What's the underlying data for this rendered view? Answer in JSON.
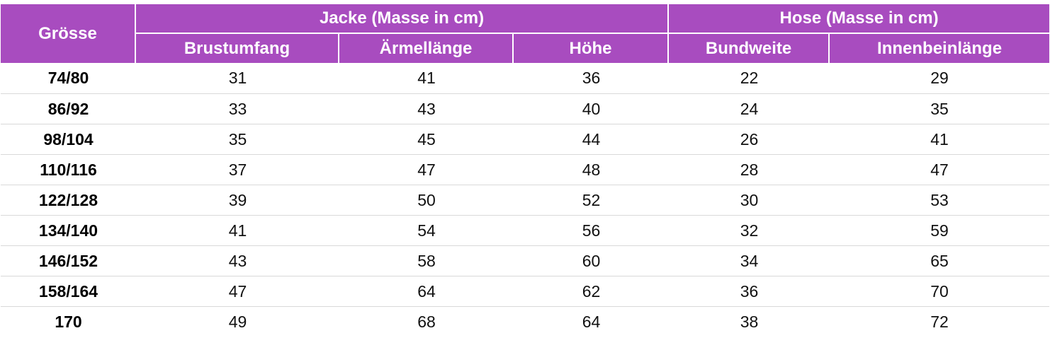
{
  "header": {
    "size_label": "Grösse",
    "jacket_group": "Jacke (Masse in cm)",
    "pants_group": "Hose (Masse in cm)",
    "columns": [
      "Brustumfang",
      "Ärmellänge",
      "Höhe",
      "Bundweite",
      "Innenbeinlänge"
    ]
  },
  "rows": [
    {
      "size": "74/80",
      "vals": [
        "31",
        "41",
        "36",
        "22",
        "29"
      ]
    },
    {
      "size": "86/92",
      "vals": [
        "33",
        "43",
        "40",
        "24",
        "35"
      ]
    },
    {
      "size": "98/104",
      "vals": [
        "35",
        "45",
        "44",
        "26",
        "41"
      ]
    },
    {
      "size": "110/116",
      "vals": [
        "37",
        "47",
        "48",
        "28",
        "47"
      ]
    },
    {
      "size": "122/128",
      "vals": [
        "39",
        "50",
        "52",
        "30",
        "53"
      ]
    },
    {
      "size": "134/140",
      "vals": [
        "41",
        "54",
        "56",
        "32",
        "59"
      ]
    },
    {
      "size": "146/152",
      "vals": [
        "43",
        "58",
        "60",
        "34",
        "65"
      ]
    },
    {
      "size": "158/164",
      "vals": [
        "47",
        "64",
        "62",
        "36",
        "70"
      ]
    },
    {
      "size": "170",
      "vals": [
        "49",
        "68",
        "64",
        "38",
        "72"
      ]
    }
  ],
  "colors": {
    "header_bg": "#a84cbf",
    "header_text": "#ffffff",
    "row_divider": "#d9d9d9"
  }
}
